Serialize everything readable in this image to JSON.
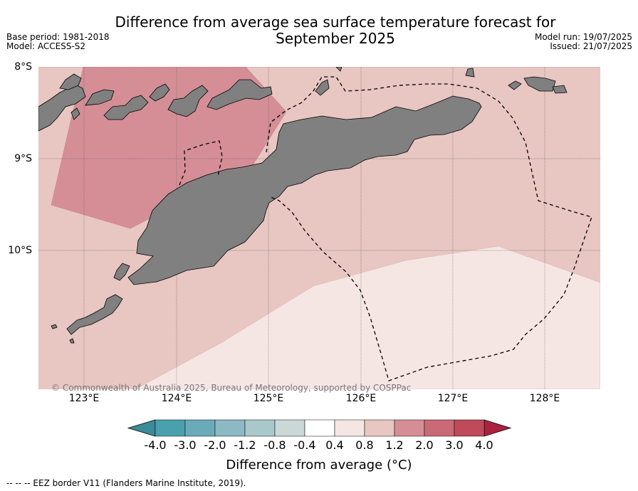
{
  "header": {
    "title_line1": "Difference from average sea surface temperature forecast for",
    "title_line2": "September 2025",
    "base_period": "Base period: 1981-2018",
    "model": "Model: ACCESS-S2",
    "model_run": "Model run: 19/07/2025",
    "issued": "Issued: 21/07/2025"
  },
  "map": {
    "lat_labels": [
      "8°S",
      "9°S",
      "10°S"
    ],
    "lon_labels": [
      "123°E",
      "124°E",
      "125°E",
      "126°E",
      "127°E",
      "128°E"
    ],
    "copyright": "© Commonwealth of Australia 2025, Bureau of Meteorology, supported by COSPPac",
    "colors": {
      "land": "#808080",
      "anomaly_0.4_0.8": "#f5e6e4",
      "anomaly_0.8_1.2": "#e8c6c1",
      "anomaly_1.2_2.0": "#d58e96"
    }
  },
  "colorbar": {
    "label": "Difference from average (°C)",
    "ticks": [
      "-4.0",
      "-3.0",
      "-2.0",
      "-1.2",
      "-0.8",
      "-0.4",
      "0.4",
      "0.8",
      "1.2",
      "2.0",
      "3.0",
      "4.0"
    ],
    "colors": [
      "#3b8b98",
      "#4aa1ae",
      "#6aabba",
      "#8cb9c4",
      "#a9c8cb",
      "#cbd8d8",
      "#ffffff",
      "#f5e6e4",
      "#e8c6c1",
      "#d58e96",
      "#c96a76",
      "#bf4a5a",
      "#ab2240"
    ]
  },
  "legend": {
    "eez_line": "--  --  -- EEZ border V11 (Flanders Marine Institute, 2019)."
  }
}
